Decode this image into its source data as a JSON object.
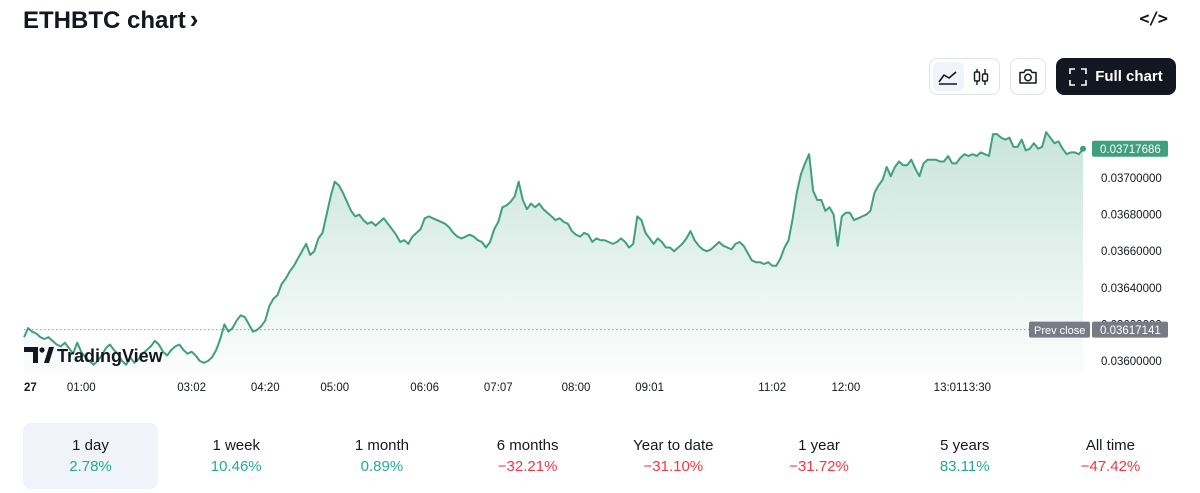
{
  "header": {
    "title": "ETHBTC chart",
    "chevron": "›",
    "embed_icon": "</>"
  },
  "toolbar": {
    "line_icon": "line-chart-icon",
    "candles_icon": "candlestick-icon",
    "camera_icon": "camera-icon",
    "full_chart_label": "Full chart",
    "full_chart_icon": "expand-icon"
  },
  "brand": {
    "name": "TradingView",
    "logo": "tradingview-logo"
  },
  "colors": {
    "line": "#3f9f7f",
    "price_badge": "#3f9f7f",
    "prev_close_badge": "#787b86",
    "pos": "#22ab94",
    "neg": "#f23645"
  },
  "chart_data": {
    "type": "area",
    "x_ticks": [
      "27",
      "01:00",
      "03:02",
      "04:20",
      "05:00",
      "06:06",
      "07:07",
      "08:00",
      "09:01",
      "11:02",
      "12:00",
      "13:01",
      "13:30"
    ],
    "y_ticks": [
      "0.03700000",
      "0.03680000",
      "0.03660000",
      "0.03640000",
      "0.03620000",
      "0.03600000"
    ],
    "ylim": [
      0.03596,
      0.03724
    ],
    "last_price": "0.03717686",
    "prev_close_label": "Prev close",
    "prev_close": "0.03617141",
    "series": [
      {
        "values": [
          0.03613,
          0.03618,
          0.03616,
          0.03615,
          0.03613,
          0.03612,
          0.03613,
          0.03611,
          0.03609,
          0.03608,
          0.0361,
          0.03607,
          0.03604,
          0.0361,
          0.03605,
          0.03602,
          0.036,
          0.03598,
          0.036,
          0.03603,
          0.03607,
          0.03609,
          0.03606,
          0.03604,
          0.036,
          0.03598,
          0.03602,
          0.03599,
          0.03601,
          0.03604,
          0.03606,
          0.03608,
          0.03611,
          0.03609,
          0.03605,
          0.03603,
          0.03606,
          0.03608,
          0.03609,
          0.03606,
          0.03604,
          0.03605,
          0.03603,
          0.036,
          0.03599,
          0.036,
          0.03602,
          0.03606,
          0.03612,
          0.0362,
          0.03616,
          0.03618,
          0.03622,
          0.03625,
          0.03624,
          0.0362,
          0.03616,
          0.03617,
          0.03619,
          0.03622,
          0.0363,
          0.03634,
          0.03636,
          0.03642,
          0.03645,
          0.03649,
          0.03652,
          0.03656,
          0.0366,
          0.03664,
          0.03658,
          0.0366,
          0.03667,
          0.0367,
          0.0368,
          0.0369,
          0.03698,
          0.03696,
          0.03692,
          0.03687,
          0.03682,
          0.03679,
          0.0368,
          0.03677,
          0.03675,
          0.03676,
          0.03674,
          0.03676,
          0.03678,
          0.03675,
          0.03672,
          0.03669,
          0.03665,
          0.03666,
          0.03664,
          0.03668,
          0.0367,
          0.03672,
          0.03678,
          0.03679,
          0.03678,
          0.03677,
          0.03676,
          0.03675,
          0.03673,
          0.0367,
          0.03668,
          0.03667,
          0.03668,
          0.03669,
          0.03668,
          0.03666,
          0.03665,
          0.03662,
          0.03665,
          0.03672,
          0.03676,
          0.03684,
          0.03685,
          0.03687,
          0.0369,
          0.03698,
          0.03688,
          0.03683,
          0.03686,
          0.03684,
          0.03686,
          0.03683,
          0.03681,
          0.03679,
          0.03677,
          0.03678,
          0.03676,
          0.03675,
          0.03671,
          0.03669,
          0.03668,
          0.0367,
          0.03669,
          0.03665,
          0.03667,
          0.03666,
          0.03666,
          0.03665,
          0.03664,
          0.03665,
          0.03667,
          0.03665,
          0.03662,
          0.03664,
          0.03679,
          0.03677,
          0.0367,
          0.03667,
          0.03664,
          0.03667,
          0.03665,
          0.03662,
          0.03662,
          0.0366,
          0.03662,
          0.03664,
          0.03667,
          0.03671,
          0.03666,
          0.03663,
          0.03661,
          0.0366,
          0.03661,
          0.03663,
          0.03665,
          0.03663,
          0.03662,
          0.03661,
          0.03664,
          0.03665,
          0.03663,
          0.03659,
          0.03655,
          0.03654,
          0.03654,
          0.03653,
          0.03654,
          0.03652,
          0.03652,
          0.03656,
          0.03662,
          0.03666,
          0.03678,
          0.03692,
          0.03702,
          0.03708,
          0.03713,
          0.03693,
          0.03688,
          0.03688,
          0.03682,
          0.03684,
          0.0368,
          0.03663,
          0.03679,
          0.03681,
          0.03681,
          0.03677,
          0.03678,
          0.03679,
          0.0368,
          0.03682,
          0.03692,
          0.03696,
          0.03699,
          0.03706,
          0.03701,
          0.03706,
          0.03709,
          0.03707,
          0.03707,
          0.0371,
          0.03705,
          0.03701,
          0.03708,
          0.0371,
          0.0371,
          0.0371,
          0.03709,
          0.03709,
          0.03712,
          0.03708,
          0.03708,
          0.03711,
          0.03713,
          0.03712,
          0.03713,
          0.03712,
          0.03714,
          0.03713,
          0.03712,
          0.03724,
          0.03724,
          0.03722,
          0.03721,
          0.03722,
          0.03717,
          0.03717,
          0.03721,
          0.03715,
          0.03716,
          0.03719,
          0.03716,
          0.03717,
          0.03725,
          0.03722,
          0.03719,
          0.0372,
          0.03716,
          0.03713,
          0.03714,
          0.03714,
          0.03713,
          0.03716
        ]
      }
    ],
    "x_tick_index": [
      0,
      14,
      41,
      59,
      76,
      98,
      116,
      135,
      153,
      183,
      201,
      226,
      233
    ]
  },
  "periods": [
    {
      "label": "1 day",
      "value": "2.78%",
      "sign": "pos",
      "active": true
    },
    {
      "label": "1 week",
      "value": "10.46%",
      "sign": "pos",
      "active": false
    },
    {
      "label": "1 month",
      "value": "0.89%",
      "sign": "pos",
      "active": false
    },
    {
      "label": "6 months",
      "value": "−32.21%",
      "sign": "neg",
      "active": false
    },
    {
      "label": "Year to date",
      "value": "−31.10%",
      "sign": "neg",
      "active": false
    },
    {
      "label": "1 year",
      "value": "−31.72%",
      "sign": "neg",
      "active": false
    },
    {
      "label": "5 years",
      "value": "83.11%",
      "sign": "pos",
      "active": false
    },
    {
      "label": "All time",
      "value": "−47.42%",
      "sign": "neg",
      "active": false
    }
  ]
}
